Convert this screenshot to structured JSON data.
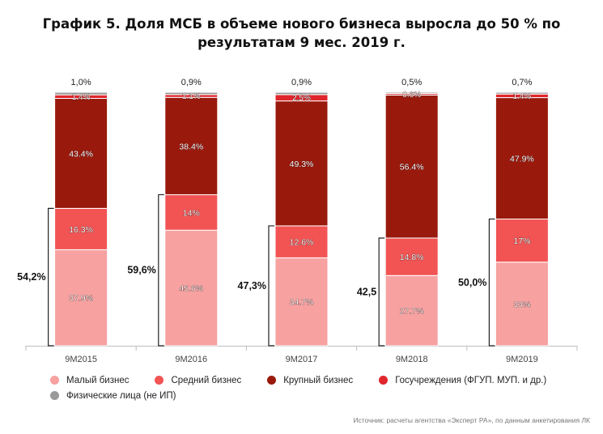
{
  "title_line1": "График 5. Доля МСБ в объеме нового бизнеса выросла до 50 % по",
  "title_line2": "результатам 9 мес. 2019 г.",
  "source": "Источник: расчеты агентства «Эксперт РА», по данным анкетирования ЛК",
  "chart_data": {
    "type": "bar",
    "stacked": true,
    "categories": [
      "9M2015",
      "9M2016",
      "9M2017",
      "9M2018",
      "9M2019"
    ],
    "series": [
      {
        "name": "Малый бизнес",
        "color": "#f7a1a1",
        "values": [
          37.9,
          45.6,
          34.7,
          27.7,
          33
        ],
        "labels": [
          "37.9%",
          "45.6%",
          "34.7%",
          "27.7%",
          "33%"
        ]
      },
      {
        "name": "Средний бизнес",
        "color": "#f25454",
        "values": [
          16.3,
          14,
          12.6,
          14.8,
          17
        ],
        "labels": [
          "16.3%",
          "14%",
          "12.6%",
          "14.8%",
          "17%"
        ]
      },
      {
        "name": "Крупный бизнес",
        "color": "#991a0d",
        "values": [
          43.4,
          38.4,
          49.3,
          56.4,
          47.9
        ],
        "labels": [
          "43.4%",
          "38.4%",
          "49.3%",
          "56.4%",
          "47.9%"
        ]
      },
      {
        "name": "Госучреждения (ФГУП. МУП. и др.)",
        "color": "#e0262c",
        "values": [
          1.4,
          1.1,
          2.5,
          0.6,
          1.4
        ],
        "labels": [
          "1.4%",
          "1.1%",
          "2.5%",
          "0.6%",
          "1.4%"
        ]
      },
      {
        "name": "Физические лица (не ИП)",
        "color": "#999999",
        "values": [
          1.0,
          0.9,
          0.9,
          0.5,
          0.7
        ],
        "labels": [
          "1,0%",
          "0,9%",
          "0,9%",
          "0,5%",
          "0,7%"
        ]
      }
    ],
    "sme_totals": [
      "54,2%",
      "59,6%",
      "47,3%",
      "42,5",
      "50,0%"
    ],
    "ylim": [
      0,
      100
    ],
    "xlabel": "",
    "ylabel": "",
    "legend_position": "bottom-left"
  }
}
